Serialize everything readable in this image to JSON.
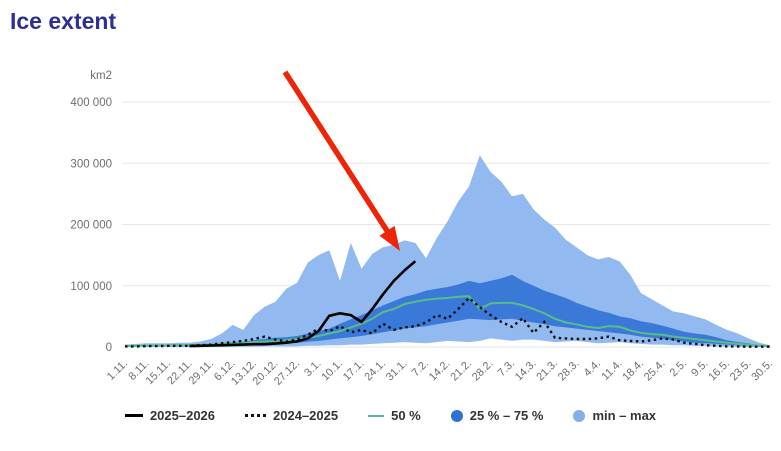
{
  "page": {
    "title": "Ice extent"
  },
  "colors": {
    "title": "#2d2f92",
    "band_minmax": "#92baf0",
    "band_iqr": "#3a79d8",
    "median": "#57bd8c",
    "season_current": "#000000",
    "season_previous": "#111111",
    "arrow": "#ee2408",
    "gridline": "#e6e6e6",
    "baseline": "#dfe4ee",
    "axis_text": "#6e6e6e"
  },
  "chart_data": {
    "type": "area",
    "title": "Ice extent",
    "unit_label": "km2",
    "ylim": [
      0,
      400000
    ],
    "grid": true,
    "y_ticks": [
      {
        "label": "400 000",
        "value": 400000
      },
      {
        "label": "300 000",
        "value": 300000
      },
      {
        "label": "200 000",
        "value": 200000
      },
      {
        "label": "100 000",
        "value": 100000
      },
      {
        "label": "0",
        "value": 0
      }
    ],
    "x_tick_labels": [
      "1.11.",
      "8.11.",
      "15.11.",
      "22.11.",
      "29.11.",
      "6.12.",
      "13.12.",
      "20.12.",
      "27.12.",
      "3.1.",
      "10.1.",
      "17.1.",
      "24.1.",
      "31.1.",
      "7.2.",
      "14.2.",
      "21.2.",
      "28.2.",
      "7.3.",
      "14.3.",
      "21.3.",
      "28.3.",
      "4.4.",
      "11.4.",
      "18.4.",
      "25.4.",
      "2.5.",
      "9.5.",
      "16.5.",
      "23.5.",
      "30.5."
    ],
    "points_per_week": 2,
    "series": [
      {
        "name": "max",
        "role": "band-minmax-upper",
        "values": [
          4000,
          5000,
          6000,
          6000,
          6000,
          7000,
          7000,
          9000,
          13000,
          22000,
          36000,
          28000,
          52000,
          66000,
          74000,
          95000,
          105000,
          138000,
          150000,
          158000,
          108000,
          170000,
          128000,
          152000,
          163000,
          167000,
          174000,
          170000,
          145000,
          178000,
          205000,
          238000,
          262000,
          313000,
          286000,
          270000,
          246000,
          250000,
          225000,
          208000,
          195000,
          175000,
          163000,
          150000,
          143000,
          147000,
          140000,
          118000,
          88000,
          78000,
          68000,
          58000,
          55000,
          50000,
          45000,
          36000,
          28000,
          22000,
          14000,
          7000,
          3000
        ]
      },
      {
        "name": "min",
        "role": "band-minmax-lower",
        "values": [
          0,
          0,
          0,
          0,
          0,
          0,
          0,
          0,
          0,
          0,
          500,
          500,
          500,
          1000,
          1000,
          1000,
          1000,
          2000,
          2000,
          3000,
          3000,
          4000,
          4000,
          5000,
          6000,
          7000,
          8000,
          7000,
          6000,
          8000,
          10000,
          9000,
          8000,
          10000,
          14000,
          12000,
          10000,
          12000,
          12000,
          10000,
          8000,
          9000,
          10000,
          8000,
          6000,
          7000,
          8000,
          6000,
          5000,
          4000,
          4000,
          3000,
          3000,
          2000,
          2000,
          1000,
          1000,
          500,
          0,
          0,
          0
        ]
      },
      {
        "name": "p75",
        "role": "band-iqr-upper",
        "values": [
          1000,
          1500,
          2000,
          2000,
          2500,
          3000,
          3000,
          4000,
          5000,
          6000,
          8000,
          9000,
          11000,
          13000,
          15000,
          16000,
          18000,
          22000,
          26000,
          30000,
          38000,
          45000,
          52000,
          60000,
          68000,
          75000,
          82000,
          86000,
          92000,
          95000,
          98000,
          102000,
          108000,
          104000,
          108000,
          112000,
          118000,
          108000,
          100000,
          92000,
          86000,
          80000,
          72000,
          66000,
          60000,
          56000,
          50000,
          47000,
          42000,
          39000,
          35000,
          30000,
          25000,
          22000,
          20000,
          16000,
          11000,
          8000,
          6000,
          2000,
          1000
        ]
      },
      {
        "name": "p25",
        "role": "band-iqr-lower",
        "values": [
          500,
          500,
          1000,
          1000,
          1000,
          1500,
          1500,
          2000,
          2000,
          2500,
          3000,
          3500,
          4000,
          4500,
          5000,
          6000,
          7000,
          8500,
          10000,
          12000,
          14000,
          16000,
          18000,
          21000,
          24000,
          27000,
          30000,
          32000,
          34000,
          37000,
          40000,
          43000,
          46000,
          45000,
          44000,
          45000,
          46000,
          43000,
          40000,
          37000,
          34000,
          32000,
          30000,
          28000,
          26000,
          24000,
          22000,
          20000,
          17000,
          15000,
          13000,
          11000,
          9000,
          7000,
          6000,
          5000,
          4000,
          3000,
          2000,
          1000,
          500
        ]
      },
      {
        "name": "p50",
        "role": "median-line",
        "values": [
          1500,
          2000,
          2000,
          2500,
          2500,
          3000,
          3000,
          3500,
          4000,
          5000,
          6000,
          7000,
          8000,
          9000,
          10000,
          11000,
          13000,
          15000,
          18000,
          22000,
          26000,
          32000,
          38000,
          46000,
          57000,
          62000,
          70000,
          74000,
          77000,
          79000,
          80000,
          82000,
          83000,
          62000,
          71000,
          72000,
          72000,
          68000,
          62000,
          55000,
          46000,
          40000,
          37000,
          33000,
          31000,
          34000,
          33000,
          27000,
          23000,
          21000,
          20000,
          17000,
          15000,
          13000,
          11000,
          9000,
          7000,
          5000,
          4000,
          2000,
          1500
        ]
      },
      {
        "name": "season_2024_2025",
        "role": "dotted-line",
        "values": [
          1000,
          1000,
          1500,
          1500,
          2000,
          2000,
          2000,
          3000,
          4000,
          6000,
          8000,
          10000,
          13000,
          17000,
          12000,
          9000,
          12000,
          20000,
          30000,
          26000,
          34000,
          24000,
          28000,
          22000,
          38000,
          28000,
          32000,
          34000,
          40000,
          52000,
          46000,
          62000,
          80000,
          65000,
          52000,
          41000,
          33000,
          47000,
          23000,
          41000,
          15000,
          14000,
          13000,
          13000,
          14000,
          17000,
          11000,
          10000,
          9000,
          11000,
          14000,
          12000,
          7000,
          5000,
          3000,
          2000,
          1000,
          1000,
          500,
          500,
          500
        ]
      },
      {
        "name": "season_2025_2026",
        "role": "solid-line",
        "values": [
          null,
          null,
          null,
          null,
          null,
          null,
          1500,
          2000,
          2500,
          3000,
          3500,
          4000,
          4500,
          4500,
          5500,
          7000,
          9000,
          14000,
          26000,
          51000,
          55000,
          52000,
          41000,
          62000,
          86000,
          108000,
          125000,
          140000,
          null,
          null,
          null,
          null,
          null,
          null,
          null,
          null,
          null,
          null,
          null,
          null,
          null,
          null,
          null,
          null,
          null,
          null,
          null,
          null,
          null,
          null,
          null,
          null,
          null,
          null,
          null,
          null,
          null,
          null,
          null,
          null,
          null
        ]
      }
    ],
    "annotation": {
      "type": "arrow",
      "from": [
        285,
        72
      ],
      "to": [
        400,
        251
      ]
    },
    "legend_position": "bottom"
  },
  "legend": {
    "items": [
      {
        "label": "2025–2026",
        "marker": "solid-line"
      },
      {
        "label": "2024–2025",
        "marker": "dotted-line"
      },
      {
        "label": "50 %",
        "marker": "green-line"
      },
      {
        "label": "25 % – 75 %",
        "marker": "circle-dark-blue",
        "color": "#2e72d2"
      },
      {
        "label": "min – max",
        "marker": "circle-light-blue",
        "color": "#83aeee"
      }
    ]
  }
}
